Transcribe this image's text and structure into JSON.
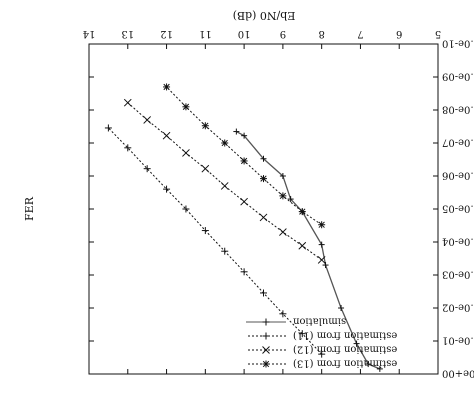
{
  "chart_data": {
    "type": "line",
    "orientation": "figure shown rotated 180 degrees",
    "xlabel": "Eb/N0 (dB)",
    "ylabel": "FER",
    "xlim": [
      5,
      14
    ],
    "xticks": [
      5,
      6,
      7,
      8,
      9,
      10,
      11,
      12,
      13,
      14
    ],
    "ylog": true,
    "ylim": [
      1e-10,
      1
    ],
    "ytick_values": [
      1,
      0.1,
      0.01,
      0.001,
      0.0001,
      1e-05,
      1e-06,
      1e-07,
      1e-08,
      1e-09,
      1e-10
    ],
    "ytick_labels": [
      "1.0e+00",
      "1.0e-01",
      "1.0e-02",
      "1.0e-03",
      "1.0e-04",
      "1.0e-05",
      "1.0e-06",
      "1.0e-07",
      "1.0e-08",
      "1.0e-09",
      "1.0e-10"
    ],
    "grid": false,
    "legend_position": "bottom-right (as displayed)",
    "series": [
      {
        "name": "simulation",
        "line_style": "solid",
        "marker": "+",
        "x": [
          6.5,
          6.8,
          7.1,
          7.5,
          7.9,
          8.0,
          8.5,
          8.8,
          9.0,
          9.5,
          10.0,
          10.2
        ],
        "y": [
          0.7,
          0.5,
          0.12,
          0.01,
          0.0005,
          0.00012,
          1.2e-05,
          5e-06,
          1e-06,
          3e-07,
          6e-08,
          4.5e-08
        ]
      },
      {
        "name": "estimation from (11)",
        "line_style": "dotted",
        "marker": "+",
        "x": [
          8.0,
          8.5,
          9.0,
          9.5,
          10.0,
          10.5,
          11.0,
          11.5,
          12.0,
          12.5,
          13.0,
          13.5
        ],
        "y": [
          0.25,
          0.06,
          0.015,
          0.0035,
          0.0008,
          0.00019,
          4.5e-05,
          1e-05,
          2.5e-06,
          6e-07,
          1.4e-07,
          3.5e-08
        ]
      },
      {
        "name": "estimation from (12)",
        "line_style": "dotted",
        "marker": "x",
        "x": [
          8.0,
          8.5,
          9.0,
          9.5,
          10.0,
          10.5,
          11.0,
          11.5,
          12.0,
          12.5,
          13.0
        ],
        "y": [
          0.00035,
          0.00013,
          5e-05,
          1.8e-05,
          6e-06,
          2e-06,
          6e-07,
          2e-07,
          6e-08,
          2e-08,
          6e-09
        ]
      },
      {
        "name": "estimation from (13)",
        "line_style": "dotted",
        "marker": "*",
        "x": [
          8.0,
          8.5,
          9.0,
          9.5,
          10.0,
          10.5,
          11.0,
          11.5,
          12.0
        ],
        "y": [
          3e-05,
          1.2e-05,
          4e-06,
          1.2e-06,
          3.5e-07,
          1e-07,
          3e-08,
          8e-09,
          2e-09
        ]
      }
    ]
  }
}
